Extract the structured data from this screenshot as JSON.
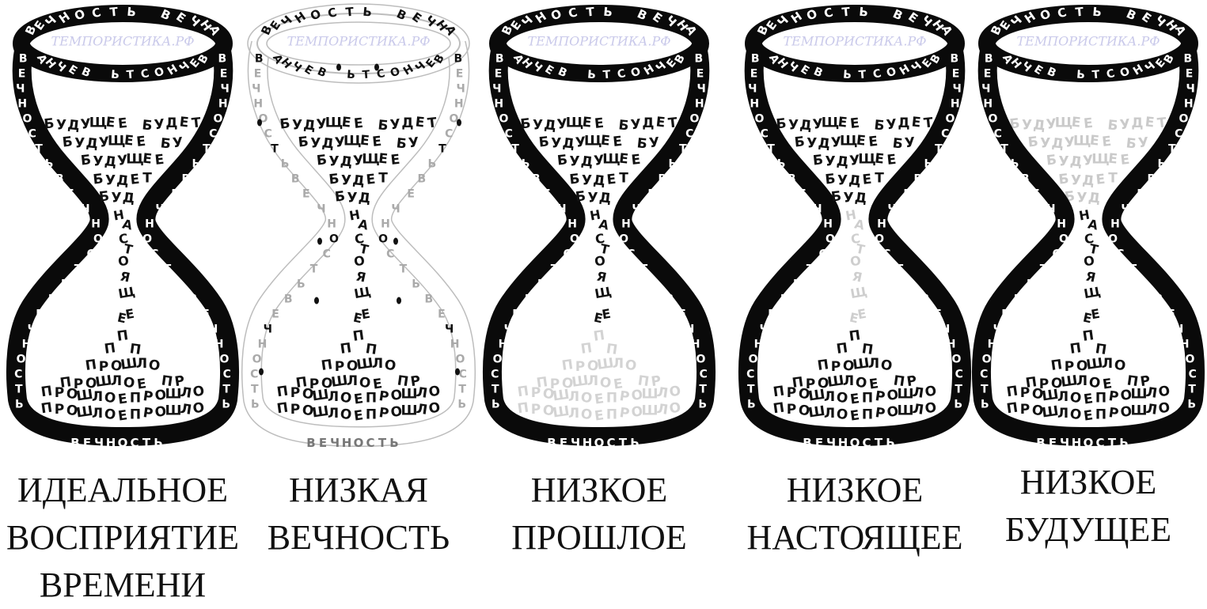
{
  "colors": {
    "frame": "#0a0a0a",
    "frame_text": "#ffffff",
    "ink": "#111111",
    "faded": "#bdbdbd",
    "watermark": "#c9c9ea",
    "background": "#ffffff"
  },
  "frame_labels": {
    "top_rim": "ВЕЧНОСТЬ ВЕЧНА",
    "top_rim_inner": "ВЕЧНОСТЬ ВЕЧНА",
    "bottom_rim": "ВЕЧНОСТЬ",
    "left_side": [
      "В",
      "Е",
      "Ч",
      "Н",
      "О",
      "С",
      "Т",
      "Ь",
      "В",
      "Е",
      "Ч",
      "Н",
      "О",
      "С",
      "Т",
      "Ь",
      "В",
      "Е",
      "Ч",
      "Н",
      "О",
      "С",
      "Т",
      "Ь"
    ],
    "right_side": [
      "В",
      "Е",
      "Ч",
      "Н",
      "О",
      "С",
      "Т",
      "Ь",
      "В",
      "Е",
      "Ч",
      "Н",
      "О",
      "С",
      "Т",
      "Ь",
      "В",
      "Е",
      "Ч",
      "Н",
      "О",
      "С",
      "Т",
      "Ь"
    ],
    "watermark": "ТЕМПОРИСТИКА.РФ"
  },
  "future_rows": [
    "БУДУЩЕЕ БУДЕТ",
    "БУДУЩЕЕ БУ",
    "БУДУЩЕЕ",
    "БУДЕТ",
    "БУД"
  ],
  "present_letters": [
    "Н",
    "А",
    "С",
    "Т",
    "О",
    "Я",
    "Щ",
    "Е",
    "Е"
  ],
  "past_rows": [
    "П",
    "П П",
    "ПРОШЛО",
    "ПРОШЛОЕ ПР",
    "ПРОШЛОЕПРОШЛО",
    "ПРОШЛОЕПРОШЛО"
  ],
  "glasses": [
    {
      "id": "ideal",
      "caption": [
        "ИДЕАЛЬНОЕ",
        "ВОСПРИЯТИЕ",
        "ВРЕМЕНИ"
      ],
      "faded": "none"
    },
    {
      "id": "low-eternity",
      "caption": [
        "НИЗКАЯ",
        "ВЕЧНОСТЬ"
      ],
      "faded": "frame"
    },
    {
      "id": "low-past",
      "caption": [
        "НИЗКОЕ",
        "ПРОШЛОЕ"
      ],
      "faded": "past"
    },
    {
      "id": "low-present",
      "caption": [
        "НИЗКОЕ",
        "НАСТОЯЩЕЕ"
      ],
      "faded": "present"
    },
    {
      "id": "low-future",
      "caption": [
        "НИЗКОЕ",
        "БУДУЩЕЕ"
      ],
      "faded": "future"
    }
  ]
}
